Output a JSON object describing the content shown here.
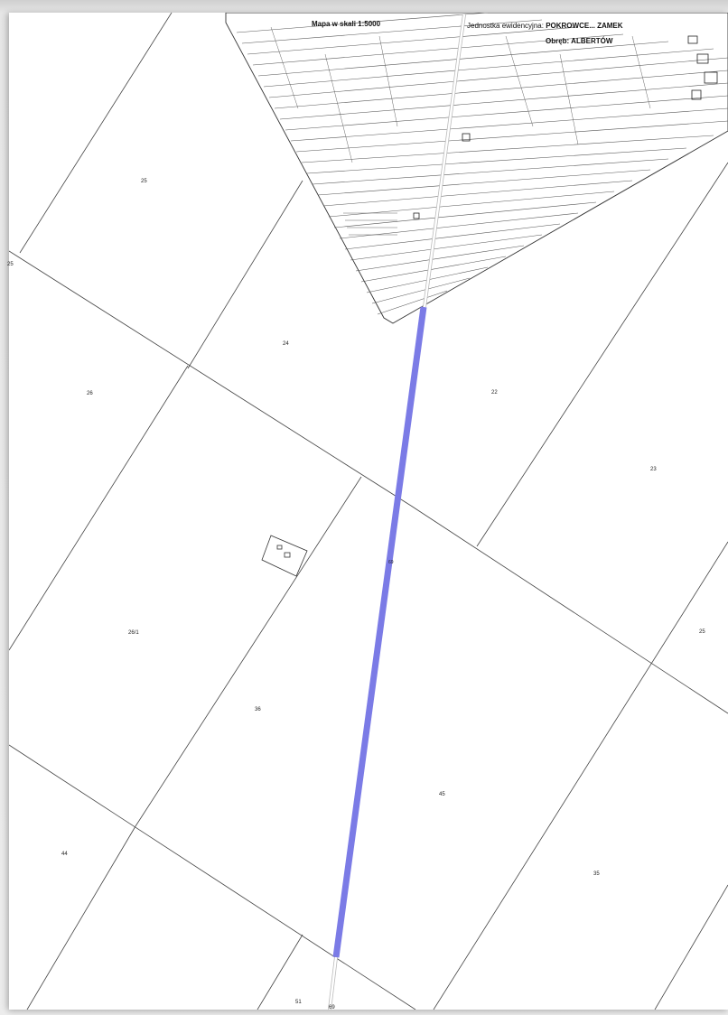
{
  "map": {
    "scale_title": "Mapa w skali 1:5000",
    "unit_label": "Jednostka ewidencyjna:",
    "unit_value": "POKROWCE... ZAMEK",
    "district_label": "Obręb:",
    "district_value": "ALBERTÓW"
  },
  "parcels": [
    {
      "id": "p-25-top",
      "label": "25"
    },
    {
      "id": "p-24",
      "label": "24"
    },
    {
      "id": "p-26",
      "label": "26"
    },
    {
      "id": "p-22",
      "label": "22"
    },
    {
      "id": "p-23",
      "label": "23"
    },
    {
      "id": "p-261",
      "label": "26/1"
    },
    {
      "id": "p-36",
      "label": "36"
    },
    {
      "id": "p-25-right",
      "label": "25"
    },
    {
      "id": "p-44",
      "label": "44"
    },
    {
      "id": "p-45",
      "label": "45"
    },
    {
      "id": "p-35",
      "label": "35"
    },
    {
      "id": "p-51",
      "label": "51"
    },
    {
      "id": "p-69",
      "label": "69"
    },
    {
      "id": "p-edge",
      "label": "25"
    }
  ],
  "route": {
    "color": "#7b7be6",
    "mid_label": "69"
  }
}
